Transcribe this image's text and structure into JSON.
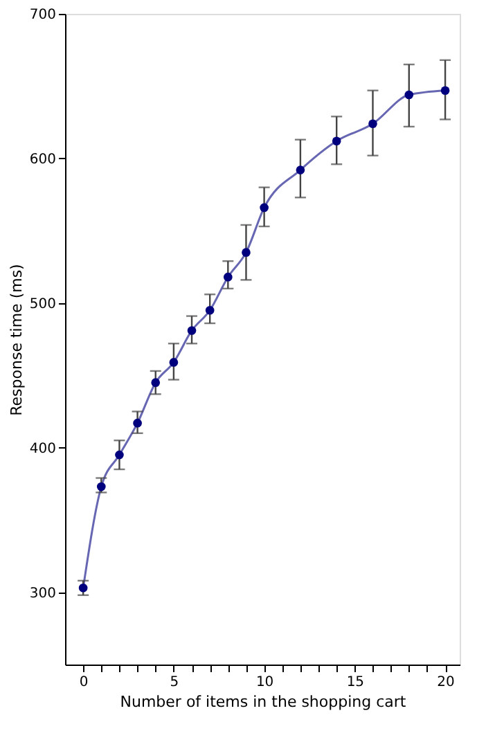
{
  "chart_data": {
    "type": "line",
    "xlabel": "Number of items in the shopping cart",
    "ylabel": "Response time (ms)",
    "x": [
      0,
      1,
      2,
      3,
      4,
      5,
      6,
      7,
      8,
      9,
      10,
      12,
      14,
      16,
      18,
      20
    ],
    "series": [
      {
        "color": "#00007f",
        "values": [
          303,
          373,
          395,
          417,
          445,
          459,
          481,
          495,
          518,
          535,
          566,
          592,
          612,
          624,
          644,
          647
        ],
        "errors": [
          [
            298,
            308
          ],
          [
            369,
            379
          ],
          [
            385,
            405
          ],
          [
            410,
            425
          ],
          [
            437,
            453
          ],
          [
            447,
            472
          ],
          [
            472,
            491
          ],
          [
            486,
            506
          ],
          [
            510,
            529
          ],
          [
            516,
            554
          ],
          [
            553,
            580
          ],
          [
            573,
            613
          ],
          [
            596,
            629
          ],
          [
            602,
            647
          ],
          [
            622,
            665
          ],
          [
            627,
            668
          ]
        ]
      }
    ],
    "marker": "circle",
    "xlim": [
      -1,
      20.8
    ],
    "xticks": [
      0,
      {
        "value": 1,
        "label": null
      },
      {
        "value": 2,
        "label": null
      },
      {
        "value": 3,
        "label": null
      },
      {
        "value": 4,
        "label": null
      },
      5,
      {
        "value": 6,
        "label": null
      },
      {
        "value": 7,
        "label": null
      },
      {
        "value": 8,
        "label": null
      },
      {
        "value": 9,
        "label": null
      },
      10,
      {
        "value": 11,
        "label": null
      },
      {
        "value": 12,
        "label": null
      },
      {
        "value": 13,
        "label": null
      },
      {
        "value": 14,
        "label": null
      },
      15,
      {
        "value": 16,
        "label": null
      },
      {
        "value": 17,
        "label": null
      },
      {
        "value": 18,
        "label": null
      },
      {
        "value": 19,
        "label": null
      },
      20
    ],
    "ylim": [
      250,
      700
    ],
    "yticks": [
      300,
      400,
      500,
      600,
      700
    ],
    "grid": false
  }
}
